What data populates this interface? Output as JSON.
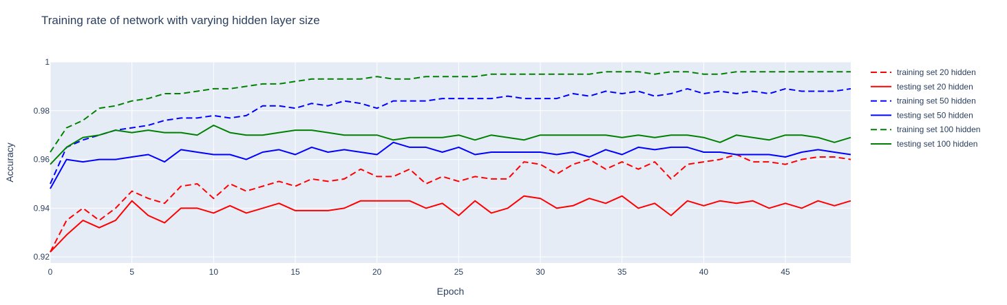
{
  "chart_data": {
    "type": "line",
    "title": "Training rate of network with varying hidden layer size",
    "xlabel": "Epoch",
    "ylabel": "Accuracy",
    "xlim": [
      0,
      49
    ],
    "ylim": [
      0.9175,
      1.0
    ],
    "x_ticks": [
      0,
      5,
      10,
      15,
      20,
      25,
      30,
      35,
      40,
      45
    ],
    "y_ticks": [
      0.92,
      0.94,
      0.96,
      0.98,
      1
    ],
    "y_tick_labels": [
      "0.92",
      "0.94",
      "0.96",
      "0.98",
      "1"
    ],
    "grid": true,
    "legend_position": "right",
    "plot_background": "#e5ecf6",
    "series": [
      {
        "name": "training set 20 hidden",
        "color": "#ff0000",
        "dash": "dash",
        "values": [
          0.922,
          0.935,
          0.94,
          0.935,
          0.94,
          0.947,
          0.944,
          0.942,
          0.949,
          0.95,
          0.944,
          0.95,
          0.947,
          0.949,
          0.951,
          0.949,
          0.952,
          0.951,
          0.952,
          0.956,
          0.953,
          0.953,
          0.956,
          0.95,
          0.953,
          0.951,
          0.953,
          0.952,
          0.952,
          0.959,
          0.958,
          0.954,
          0.958,
          0.96,
          0.956,
          0.959,
          0.956,
          0.959,
          0.952,
          0.958,
          0.959,
          0.96,
          0.962,
          0.959,
          0.959,
          0.958,
          0.96,
          0.961,
          0.961,
          0.96
        ]
      },
      {
        "name": "testing set 20 hidden",
        "color": "#ff0000",
        "dash": "solid",
        "values": [
          0.922,
          0.929,
          0.935,
          0.932,
          0.935,
          0.943,
          0.937,
          0.934,
          0.94,
          0.94,
          0.938,
          0.941,
          0.938,
          0.94,
          0.942,
          0.939,
          0.939,
          0.939,
          0.94,
          0.943,
          0.943,
          0.943,
          0.943,
          0.94,
          0.942,
          0.937,
          0.943,
          0.938,
          0.94,
          0.945,
          0.944,
          0.94,
          0.941,
          0.944,
          0.942,
          0.945,
          0.94,
          0.942,
          0.937,
          0.943,
          0.941,
          0.943,
          0.942,
          0.943,
          0.94,
          0.942,
          0.94,
          0.943,
          0.941,
          0.943
        ]
      },
      {
        "name": "training set 50 hidden",
        "color": "#0000ff",
        "dash": "dash",
        "values": [
          0.95,
          0.965,
          0.968,
          0.97,
          0.972,
          0.973,
          0.974,
          0.976,
          0.977,
          0.977,
          0.978,
          0.977,
          0.978,
          0.982,
          0.982,
          0.981,
          0.983,
          0.982,
          0.984,
          0.983,
          0.981,
          0.984,
          0.984,
          0.984,
          0.985,
          0.985,
          0.985,
          0.985,
          0.986,
          0.985,
          0.985,
          0.985,
          0.987,
          0.986,
          0.988,
          0.987,
          0.988,
          0.986,
          0.987,
          0.989,
          0.987,
          0.988,
          0.987,
          0.988,
          0.987,
          0.989,
          0.988,
          0.988,
          0.988,
          0.989
        ]
      },
      {
        "name": "testing set 50 hidden",
        "color": "#0000ff",
        "dash": "solid",
        "values": [
          0.948,
          0.96,
          0.959,
          0.96,
          0.96,
          0.961,
          0.962,
          0.959,
          0.964,
          0.963,
          0.962,
          0.962,
          0.96,
          0.963,
          0.964,
          0.962,
          0.965,
          0.963,
          0.964,
          0.963,
          0.962,
          0.967,
          0.965,
          0.965,
          0.963,
          0.965,
          0.962,
          0.963,
          0.963,
          0.963,
          0.963,
          0.962,
          0.963,
          0.961,
          0.964,
          0.962,
          0.965,
          0.964,
          0.965,
          0.965,
          0.963,
          0.963,
          0.962,
          0.962,
          0.962,
          0.961,
          0.963,
          0.964,
          0.963,
          0.962
        ]
      },
      {
        "name": "training set 100 hidden",
        "color": "#008000",
        "dash": "dash",
        "values": [
          0.963,
          0.973,
          0.976,
          0.981,
          0.982,
          0.984,
          0.985,
          0.987,
          0.987,
          0.988,
          0.989,
          0.989,
          0.99,
          0.991,
          0.991,
          0.992,
          0.993,
          0.993,
          0.993,
          0.993,
          0.994,
          0.993,
          0.993,
          0.994,
          0.994,
          0.994,
          0.994,
          0.995,
          0.995,
          0.995,
          0.995,
          0.995,
          0.995,
          0.995,
          0.996,
          0.996,
          0.996,
          0.995,
          0.996,
          0.996,
          0.995,
          0.995,
          0.996,
          0.996,
          0.996,
          0.996,
          0.996,
          0.996,
          0.996,
          0.996
        ]
      },
      {
        "name": "testing set 100 hidden",
        "color": "#008000",
        "dash": "solid",
        "values": [
          0.958,
          0.965,
          0.969,
          0.97,
          0.972,
          0.971,
          0.972,
          0.971,
          0.971,
          0.97,
          0.974,
          0.971,
          0.97,
          0.97,
          0.971,
          0.972,
          0.972,
          0.971,
          0.97,
          0.97,
          0.97,
          0.968,
          0.969,
          0.969,
          0.969,
          0.97,
          0.968,
          0.97,
          0.969,
          0.968,
          0.97,
          0.97,
          0.97,
          0.97,
          0.97,
          0.969,
          0.97,
          0.969,
          0.97,
          0.97,
          0.969,
          0.967,
          0.97,
          0.969,
          0.968,
          0.97,
          0.97,
          0.969,
          0.967,
          0.969
        ]
      }
    ]
  }
}
